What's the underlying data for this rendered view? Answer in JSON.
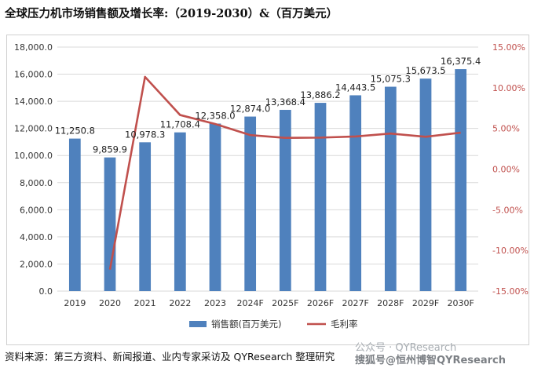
{
  "title": "全球压力机市场销售额及增长率:（2019-2030）&（百万美元）",
  "source": "资料来源：第三方资料、新闻报道、业内专家采访及 QYResearch 整理研究",
  "watermark": {
    "line1": "公众号 · QYResearch",
    "line2": "搜狐号@恒州博智QYResearch"
  },
  "chart_data": {
    "type": "bar",
    "categories": [
      "2019",
      "2020",
      "2021",
      "2022",
      "2023",
      "2024F",
      "2025F",
      "2026F",
      "2027F",
      "2028F",
      "2029F",
      "2030F"
    ],
    "series": [
      {
        "name": "销售额(百万美元)",
        "type": "bar",
        "axis": "left",
        "color": "#4f81bd",
        "values": [
          11250.8,
          9859.9,
          10978.3,
          11708.4,
          12358.0,
          12874.0,
          13368.4,
          13886.2,
          14443.5,
          15075.3,
          15673.5,
          16375.4
        ],
        "labels": [
          "11,250.8",
          "9,859.9",
          "10,978.3",
          "11,708.4",
          "12,358.0",
          "12,874.0",
          "13,368.4",
          "13,886.2",
          "14,443.5",
          "15,075.3",
          "15,673.5",
          "16,375.4"
        ]
      },
      {
        "name": "毛利率",
        "type": "line",
        "axis": "right",
        "color": "#c0504d",
        "values": [
          null,
          -12.36,
          11.34,
          6.65,
          5.55,
          4.18,
          3.84,
          3.87,
          4.01,
          4.37,
          3.97,
          4.48
        ]
      }
    ],
    "y_left": {
      "min": 0,
      "max": 18000,
      "step": 2000,
      "ticks": [
        "0.0",
        "2,000.0",
        "4,000.0",
        "6,000.0",
        "8,000.0",
        "10,000.0",
        "12,000.0",
        "14,000.0",
        "16,000.0",
        "18,000.0"
      ]
    },
    "y_right": {
      "min": -15,
      "max": 15,
      "step": 5,
      "ticks": [
        "-15.00%",
        "-10.00%",
        "-5.00%",
        "0.00%",
        "5.00%",
        "10.00%",
        "15.00%"
      ],
      "color": "#c0504d"
    },
    "grid": true,
    "legend": "bottom-center"
  }
}
